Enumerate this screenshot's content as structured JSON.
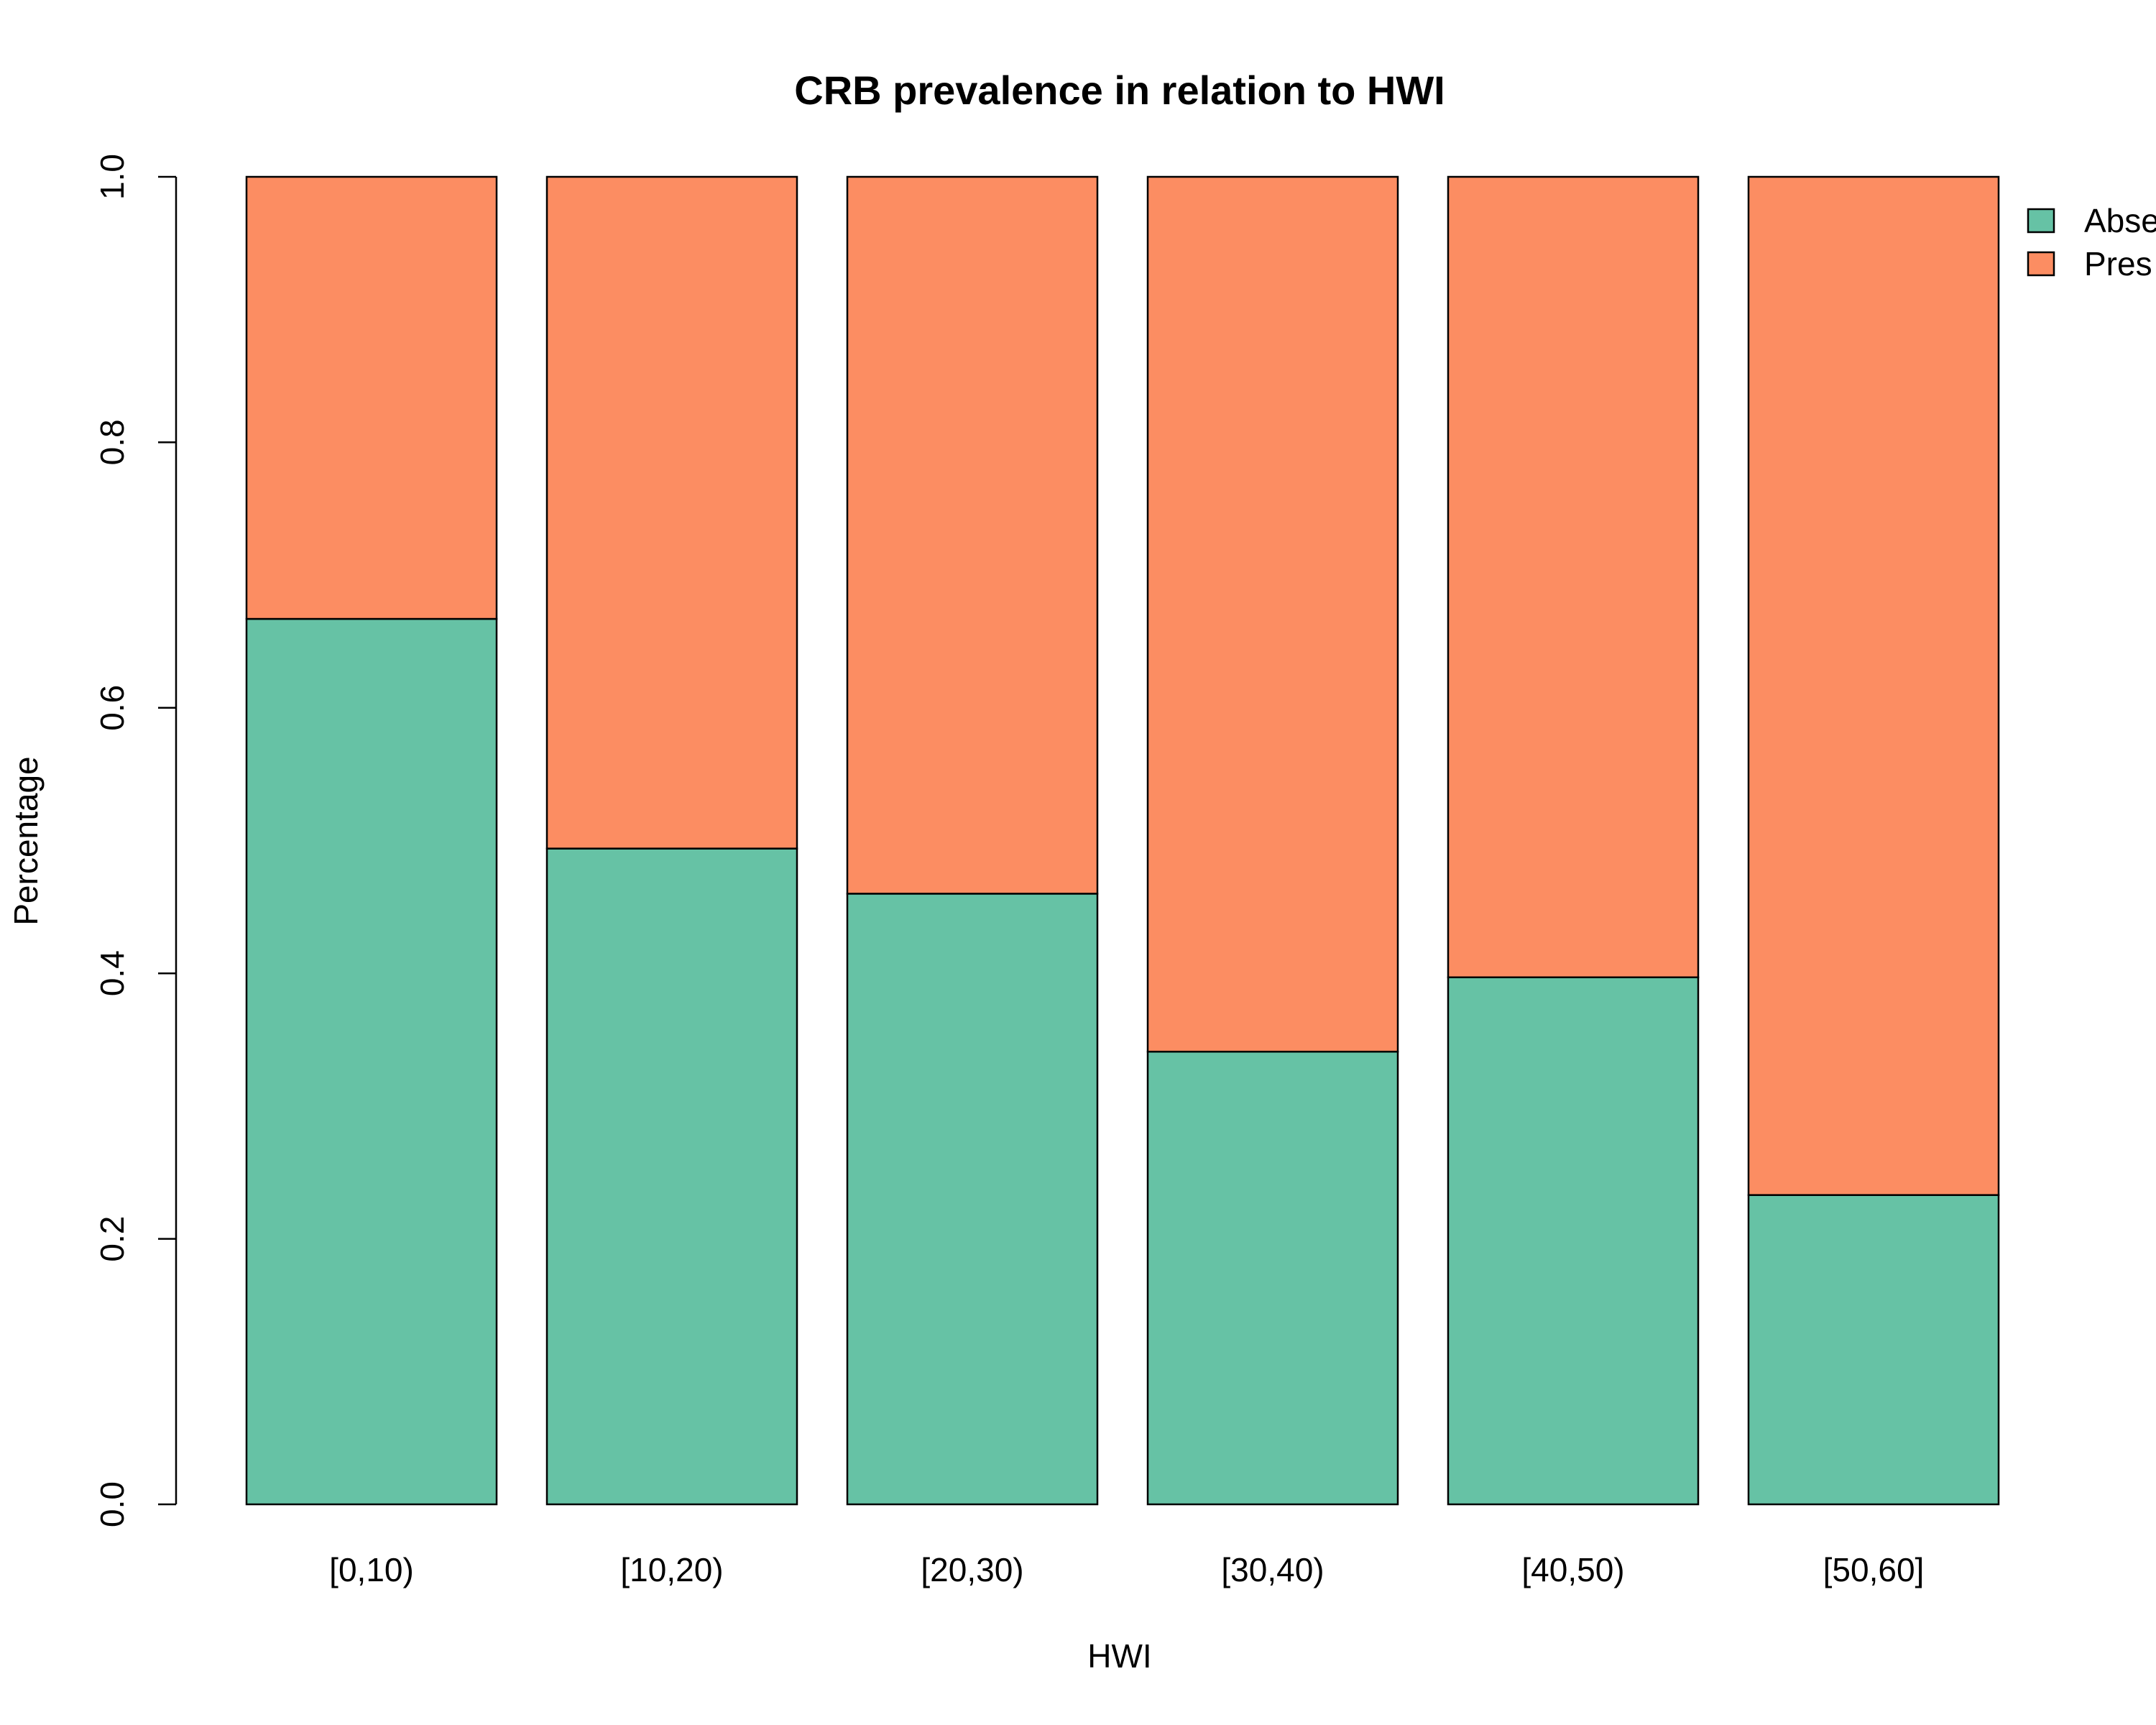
{
  "chart_data": {
    "type": "bar",
    "stacked": true,
    "title": "CRB prevalence in relation to HWI",
    "xlabel": "HWI",
    "ylabel": "Percentage",
    "ylim": [
      0,
      1
    ],
    "yticks": [
      "0.0",
      "0.2",
      "0.4",
      "0.6",
      "0.8",
      "1.0"
    ],
    "categories": [
      "[0,10)",
      "[10,20)",
      "[20,30)",
      "[30,40)",
      "[40,50)",
      "[50,60]"
    ],
    "series": [
      {
        "name": "Absent",
        "legend_visible": "Abse",
        "color": "#66c2a5",
        "values": [
          0.667,
          0.494,
          0.46,
          0.341,
          0.397,
          0.233
        ]
      },
      {
        "name": "Present",
        "legend_visible": "Pres",
        "color": "#fc8d62",
        "values": [
          0.333,
          0.506,
          0.54,
          0.659,
          0.603,
          0.767
        ]
      }
    ],
    "legend_position": "top-right",
    "grid": false
  }
}
